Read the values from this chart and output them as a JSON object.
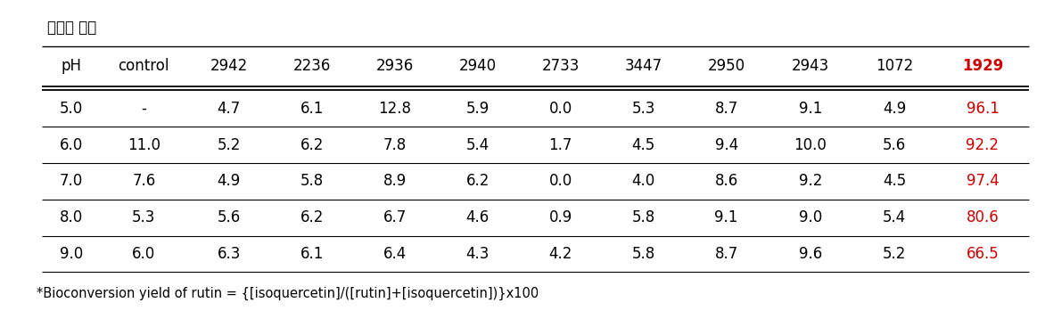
{
  "title": "유전자 번호",
  "columns": [
    "pH",
    "control",
    "2942",
    "2236",
    "2936",
    "2940",
    "2733",
    "3447",
    "2950",
    "2943",
    "1072",
    "1929"
  ],
  "last_col_color": "#cc0000",
  "rows": [
    [
      "5.0",
      "-",
      "4.7",
      "6.1",
      "12.8",
      "5.9",
      "0.0",
      "5.3",
      "8.7",
      "9.1",
      "4.9",
      "96.1"
    ],
    [
      "6.0",
      "11.0",
      "5.2",
      "6.2",
      "7.8",
      "5.4",
      "1.7",
      "4.5",
      "9.4",
      "10.0",
      "5.6",
      "92.2"
    ],
    [
      "7.0",
      "7.6",
      "4.9",
      "5.8",
      "8.9",
      "6.2",
      "0.0",
      "4.0",
      "8.6",
      "9.2",
      "4.5",
      "97.4"
    ],
    [
      "8.0",
      "5.3",
      "5.6",
      "6.2",
      "6.7",
      "4.6",
      "0.9",
      "5.8",
      "9.1",
      "9.0",
      "5.4",
      "80.6"
    ],
    [
      "9.0",
      "6.0",
      "6.3",
      "6.1",
      "6.4",
      "4.3",
      "4.2",
      "5.8",
      "8.7",
      "9.6",
      "5.2",
      "66.5"
    ]
  ],
  "footnote": "*Bioconversion yield of rutin = {[isoquercetin]/([rutin]+[isoquercetin])}x100",
  "font_size": 12,
  "header_font_size": 12,
  "title_font_size": 12,
  "footnote_font_size": 10.5,
  "fig_width": 11.72,
  "fig_height": 3.58
}
